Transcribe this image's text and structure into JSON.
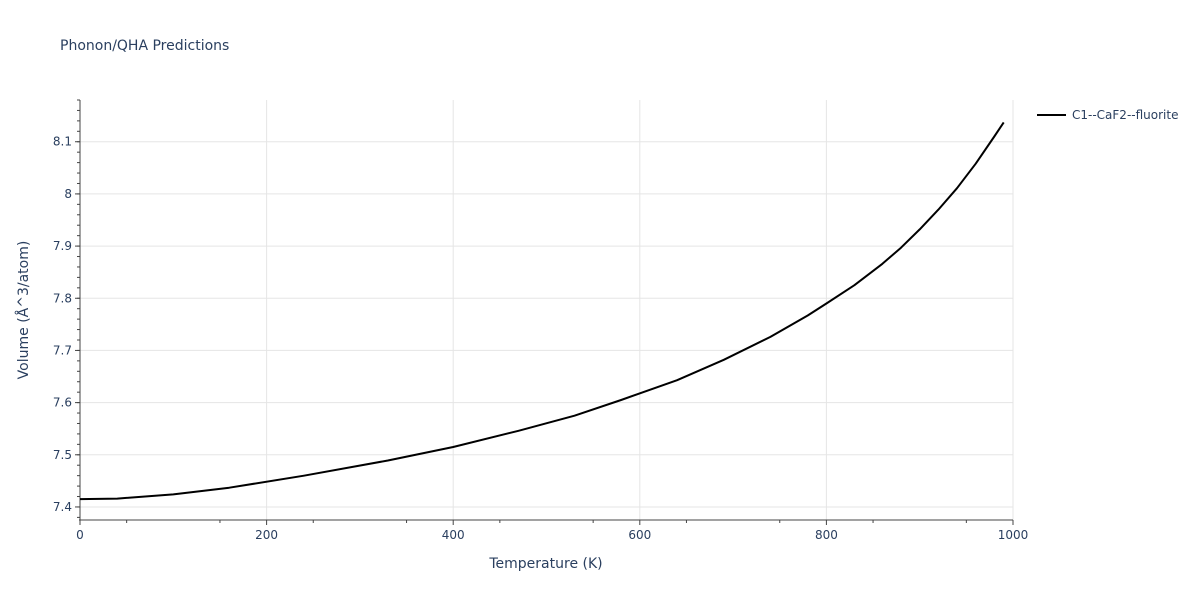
{
  "chart_data": {
    "type": "line",
    "title": "Phonon/QHA Predictions",
    "xlabel": "Temperature (K)",
    "ylabel": "Volume (Å^3/atom)",
    "xlim": [
      0,
      1000
    ],
    "ylim": [
      7.375,
      8.18
    ],
    "xticks": [
      0,
      200,
      400,
      600,
      800,
      1000
    ],
    "yticks": [
      7.4,
      7.5,
      7.6,
      7.7,
      7.8,
      7.9,
      8,
      8.1
    ],
    "grid": true,
    "legend_position": "top-right",
    "series": [
      {
        "name": "C1--CaF2--fluorite",
        "color": "#000000",
        "x": [
          0,
          40,
          100,
          160,
          240,
          330,
          400,
          470,
          530,
          580,
          640,
          690,
          740,
          780,
          800,
          830,
          860,
          880,
          900,
          920,
          940,
          960,
          980,
          990
        ],
        "y": [
          7.415,
          7.416,
          7.424,
          7.437,
          7.46,
          7.489,
          7.515,
          7.546,
          7.575,
          7.605,
          7.643,
          7.682,
          7.726,
          7.767,
          7.79,
          7.825,
          7.866,
          7.897,
          7.932,
          7.97,
          8.011,
          8.058,
          8.11,
          8.137
        ]
      }
    ]
  }
}
